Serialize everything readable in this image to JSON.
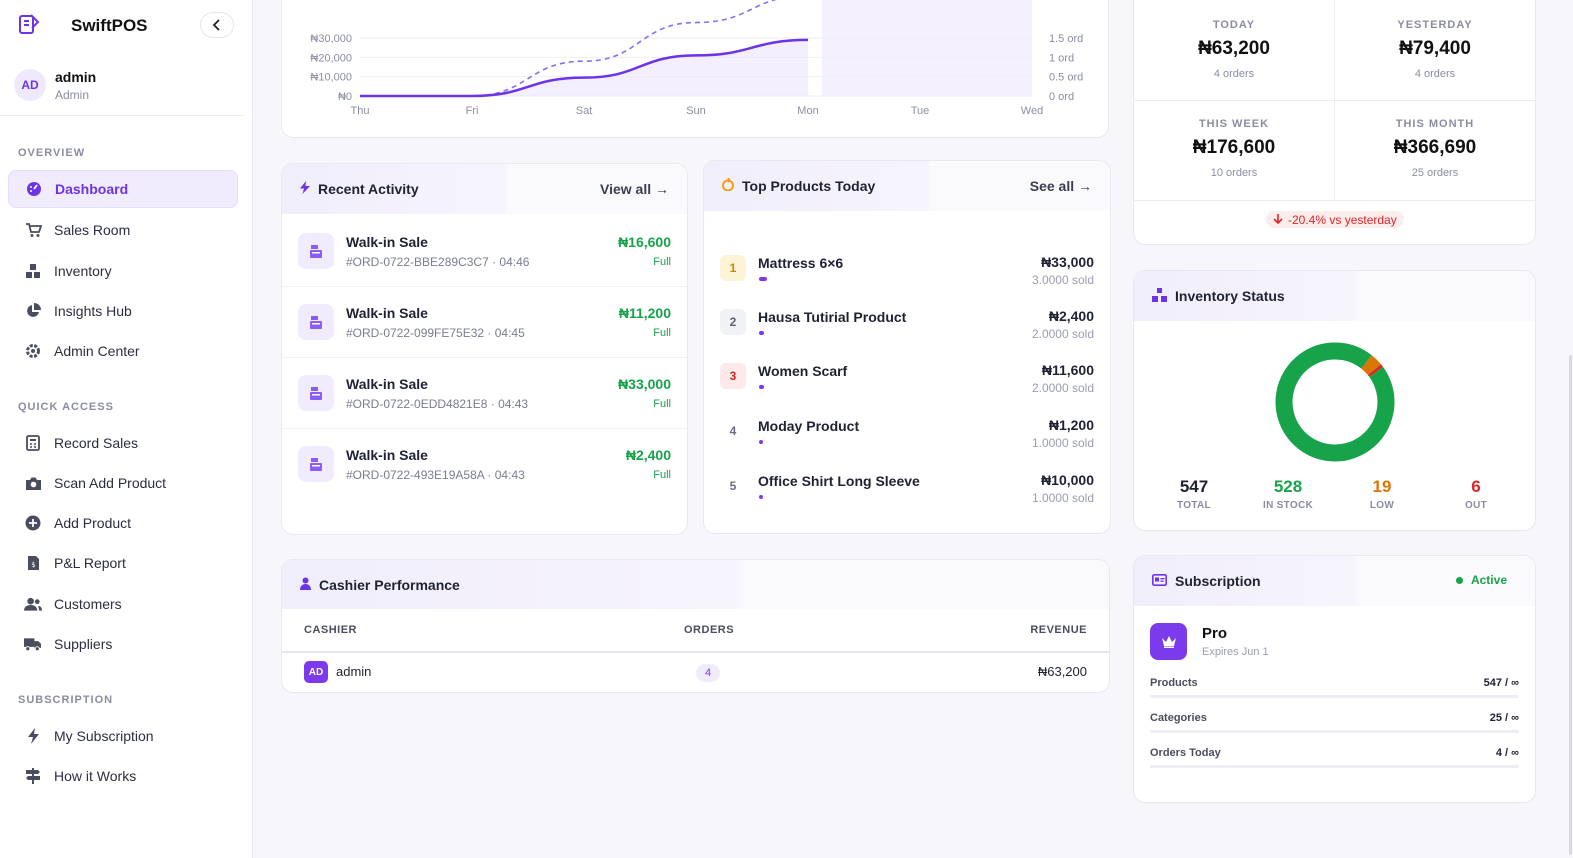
{
  "app": {
    "name": "SwiftPOS"
  },
  "user": {
    "initials": "AD",
    "name": "admin",
    "role": "Admin"
  },
  "sidebar": {
    "sections": [
      {
        "title": "OVERVIEW"
      },
      {
        "title": "QUICK ACCESS"
      },
      {
        "title": "SUBSCRIPTION"
      }
    ],
    "items": [
      {
        "label": "Dashboard",
        "icon": "dashboard-icon",
        "active": true
      },
      {
        "label": "Sales Room",
        "icon": "cart-icon"
      },
      {
        "label": "Inventory",
        "icon": "boxes-icon"
      },
      {
        "label": "Insights Hub",
        "icon": "pie-chart-icon"
      },
      {
        "label": "Admin Center",
        "icon": "gear-icon"
      },
      {
        "label": "Record Sales",
        "icon": "calculator-icon"
      },
      {
        "label": "Scan Add Product",
        "icon": "camera-icon"
      },
      {
        "label": "Add Product",
        "icon": "plus-circle-icon"
      },
      {
        "label": "P&L Report",
        "icon": "report-icon"
      },
      {
        "label": "Customers",
        "icon": "users-icon"
      },
      {
        "label": "Suppliers",
        "icon": "truck-icon"
      },
      {
        "label": "My Subscription",
        "icon": "bolt-icon"
      },
      {
        "label": "How it Works",
        "icon": "signpost-icon"
      }
    ]
  },
  "sales_chart": {
    "y_left_ticks": [
      "₦30,000",
      "₦20,000",
      "₦10,000",
      "₦0"
    ],
    "y_right_ticks": [
      "1.5 ord",
      "1 ord",
      "0.5 ord",
      "0 ord"
    ],
    "x_ticks": [
      "Thu",
      "Fri",
      "Sat",
      "Sun",
      "Mon",
      "Tue",
      "Wed"
    ]
  },
  "chart_data": {
    "type": "line",
    "x": [
      "Thu",
      "Fri",
      "Sat",
      "Sun",
      "Mon",
      "Tue",
      "Wed"
    ],
    "series": [
      {
        "values": [
          0,
          0,
          9500,
          21000,
          29000,
          null,
          null
        ]
      },
      {
        "values": [
          0,
          0,
          0.9,
          1.9,
          2.6,
          null,
          null
        ]
      }
    ],
    "ylim": [
      0,
      30000
    ],
    "ylim_right": [
      0,
      1.5
    ]
  },
  "stats": {
    "today": {
      "label": "TODAY",
      "value": "₦63,200",
      "sub": "4 orders"
    },
    "yesterday": {
      "label": "YESTERDAY",
      "value": "₦79,400",
      "sub": "4 orders"
    },
    "week": {
      "label": "THIS WEEK",
      "value": "₦176,600",
      "sub": "10 orders"
    },
    "month": {
      "label": "THIS MONTH",
      "value": "₦366,690",
      "sub": "25 orders"
    },
    "trend": "-20.4% vs yesterday"
  },
  "activity": {
    "title": "Recent Activity",
    "link": "View all →",
    "rows": [
      {
        "title": "Walk-in Sale",
        "sub": "#ORD-0722-BBE289C3C7 · 04:46",
        "amount": "₦16,600",
        "status": "Full"
      },
      {
        "title": "Walk-in Sale",
        "sub": "#ORD-0722-099FE75E32 · 04:45",
        "amount": "₦11,200",
        "status": "Full"
      },
      {
        "title": "Walk-in Sale",
        "sub": "#ORD-0722-0EDD4821E8 · 04:43",
        "amount": "₦33,000",
        "status": "Full"
      },
      {
        "title": "Walk-in Sale",
        "sub": "#ORD-0722-493E19A58A · 04:43",
        "amount": "₦2,400",
        "status": "Full"
      }
    ]
  },
  "products": {
    "title": "Top Products Today",
    "link": "See all →",
    "rows": [
      {
        "rank": "1",
        "name": "Mattress 6×6",
        "amount": "₦33,000",
        "sold": "3.0000 sold",
        "share": 0.03
      },
      {
        "rank": "2",
        "name": "Hausa Tutirial Product",
        "amount": "₦2,400",
        "sold": "2.0000 sold",
        "share": 0.02
      },
      {
        "rank": "3",
        "name": "Women Scarf",
        "amount": "₦11,600",
        "sold": "2.0000 sold",
        "share": 0.02
      },
      {
        "rank": "4",
        "name": "Moday Product",
        "amount": "₦1,200",
        "sold": "1.0000 sold",
        "share": 0.01
      },
      {
        "rank": "5",
        "name": "Office Shirt Long Sleeve",
        "amount": "₦10,000",
        "sold": "1.0000 sold",
        "share": 0.01
      }
    ]
  },
  "inventory": {
    "title": "Inventory Status",
    "total": {
      "value": "547",
      "label": "TOTAL"
    },
    "in_stock": {
      "value": "528",
      "label": "IN STOCK",
      "color": "#16a34a"
    },
    "low": {
      "value": "19",
      "label": "LOW",
      "color": "#d97706"
    },
    "out": {
      "value": "6",
      "label": "OUT",
      "color": "#dc2626"
    }
  },
  "cashier": {
    "title": "Cashier Performance",
    "columns": [
      "CASHIER",
      "ORDERS",
      "REVENUE"
    ],
    "rows": [
      {
        "initials": "AD",
        "name": "admin",
        "orders": "4",
        "revenue": "₦63,200"
      }
    ]
  },
  "subscription": {
    "title": "Subscription",
    "status": "Active",
    "plan": "Pro",
    "expires": "Expires Jun 1",
    "limits": [
      {
        "label": "Products",
        "value": "547 / ∞"
      },
      {
        "label": "Categories",
        "value": "25 / ∞"
      },
      {
        "label": "Orders Today",
        "value": "4 / ∞"
      }
    ]
  },
  "colors": {
    "accent": "#6d33e8",
    "success": "#16a34a",
    "warning": "#d97706",
    "danger": "#dc2626"
  }
}
